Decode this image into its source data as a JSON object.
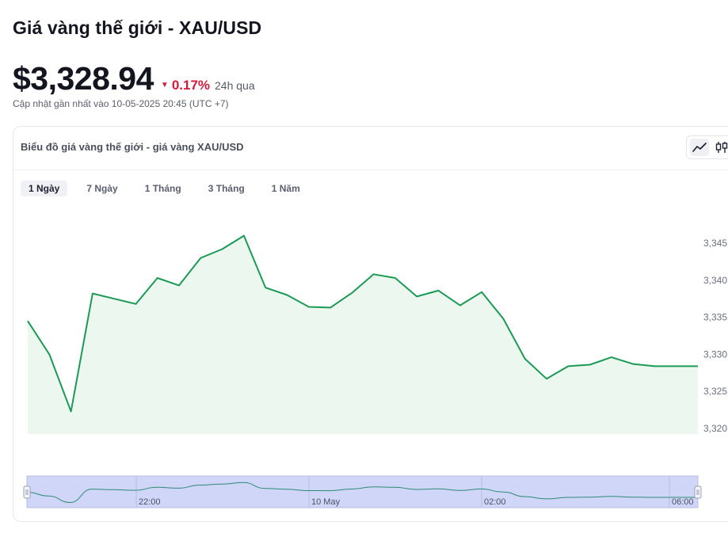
{
  "page": {
    "title": "Giá vàng thế giới - XAU/USD"
  },
  "quote": {
    "price": "$3,328.94",
    "change": "0.17%",
    "change_direction": "down",
    "change_period": "24h qua",
    "updated": "Cập nhật gần nhất vào 10-05-2025 20:45 (UTC +7)"
  },
  "chart_card": {
    "title": "Biểu đồ giá vàng thế giới - giá vàng XAU/USD",
    "chart_types": [
      {
        "name": "line",
        "icon": "line-chart-icon",
        "active": true
      },
      {
        "name": "candlestick",
        "icon": "candlestick-icon",
        "active": false
      }
    ],
    "ranges": [
      {
        "label": "1 Ngày",
        "active": true
      },
      {
        "label": "7 Ngày",
        "active": false
      },
      {
        "label": "1 Tháng",
        "active": false
      },
      {
        "label": "3 Tháng",
        "active": false
      },
      {
        "label": "1 Năm",
        "active": false
      }
    ]
  },
  "colors": {
    "line": "#1b9a56",
    "area": "#ecf7f0",
    "down": "#d11a3c",
    "navigator_fill": "#cfd6f7",
    "navigator_line": "#2f8a78"
  },
  "chart_data": {
    "type": "area",
    "y_ticks": [
      "3,345",
      "3,340",
      "3,335",
      "3,330",
      "3,325",
      "3,320"
    ],
    "ylim": [
      3320,
      3345
    ],
    "values": [
      3334.5,
      3330.0,
      3322.3,
      3338.2,
      3337.5,
      3336.8,
      3340.3,
      3339.3,
      3343.0,
      3344.2,
      3346.0,
      3339.0,
      3338.0,
      3336.4,
      3336.3,
      3338.3,
      3340.8,
      3340.3,
      3337.8,
      3338.6,
      3336.6,
      3338.4,
      3334.8,
      3329.4,
      3326.7,
      3328.4,
      3328.6,
      3329.6,
      3328.7,
      3328.4,
      3328.4,
      3328.4
    ],
    "navigator_labels": [
      "22:00",
      "10 May",
      "02:00",
      "06:00"
    ]
  }
}
